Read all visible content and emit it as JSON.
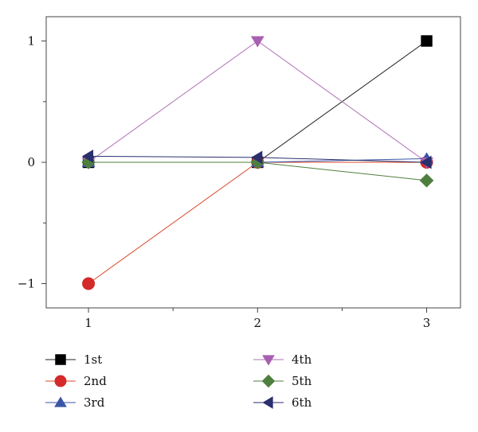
{
  "chart_data": {
    "type": "line",
    "x": [
      1,
      2,
      3
    ],
    "xlim": [
      0.75,
      3.2
    ],
    "ylim": [
      -1.2,
      1.2
    ],
    "xticks": [
      1,
      2,
      3
    ],
    "xtick_labels": [
      "1",
      "2",
      "3"
    ],
    "x_minor_ticks": [
      1.5,
      2.5
    ],
    "yticks": [
      -1,
      0,
      1
    ],
    "ytick_labels": [
      "−1",
      "0",
      "1"
    ],
    "y_minor_ticks": [
      -0.5,
      0.5
    ],
    "title": "",
    "xlabel": "",
    "ylabel": "",
    "grid": false,
    "legend_position": "bottom",
    "series": [
      {
        "name": "1st",
        "marker": "square",
        "color": "#000000",
        "line_color": "#222222",
        "values": [
          0,
          0,
          1
        ]
      },
      {
        "name": "2nd",
        "marker": "circle",
        "color": "#d42a2a",
        "line_color": "#d84a2a",
        "values": [
          -1,
          0,
          0
        ]
      },
      {
        "name": "3rd",
        "marker": "triangle-up",
        "color": "#3a55a8",
        "line_color": "#3a55a8",
        "values": [
          0,
          0,
          0.03
        ]
      },
      {
        "name": "4th",
        "marker": "triangle-down",
        "color": "#a860b0",
        "line_color": "#b070b8",
        "values": [
          0,
          1,
          0
        ]
      },
      {
        "name": "5th",
        "marker": "diamond",
        "color": "#4f7f3e",
        "line_color": "#4f7f3e",
        "values": [
          0,
          0,
          -0.15
        ]
      },
      {
        "name": "6th",
        "marker": "triangle-left",
        "color": "#2a2f6e",
        "line_color": "#2a2f6e",
        "values": [
          0.05,
          0.04,
          0
        ]
      }
    ]
  }
}
